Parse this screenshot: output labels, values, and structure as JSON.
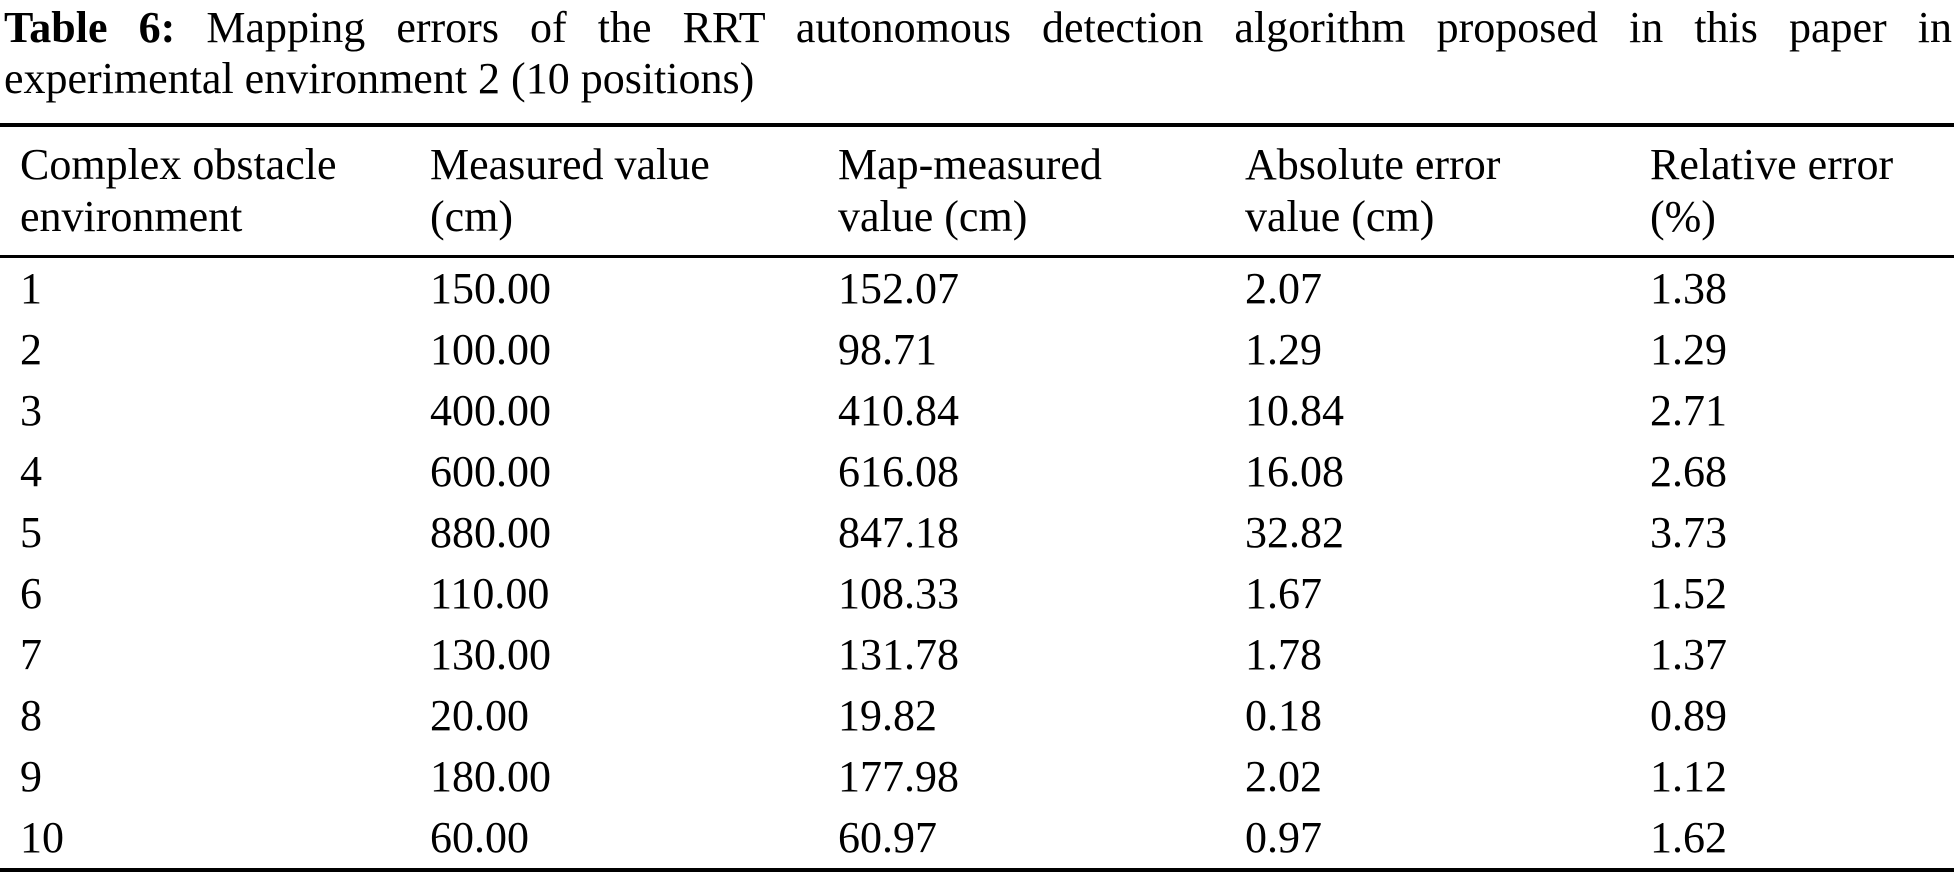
{
  "page": {
    "background": "#ffffff",
    "text_color": "#000000"
  },
  "caption": {
    "label": "Table 6:",
    "line1": "Mapping errors of the RRT autonomous detection algorithm proposed in this paper in",
    "line2": "experimental environment 2 (10 positions)"
  },
  "chart_data": {
    "type": "table",
    "title": "Table 6: Mapping errors of the RRT autonomous detection algorithm proposed in this paper in experimental environment 2 (10 positions)",
    "columns": [
      "Complex obstacle\nenvironment",
      "Measured value\n(cm)",
      "Map-measured\nvalue (cm)",
      "Absolute error\nvalue (cm)",
      "Relative error\n(%)"
    ],
    "rows": [
      [
        "1",
        "150.00",
        "152.07",
        "2.07",
        "1.38"
      ],
      [
        "2",
        "100.00",
        "98.71",
        "1.29",
        "1.29"
      ],
      [
        "3",
        "400.00",
        "410.84",
        "10.84",
        "2.71"
      ],
      [
        "4",
        "600.00",
        "616.08",
        "16.08",
        "2.68"
      ],
      [
        "5",
        "880.00",
        "847.18",
        "32.82",
        "3.73"
      ],
      [
        "6",
        "110.00",
        "108.33",
        "1.67",
        "1.52"
      ],
      [
        "7",
        "130.00",
        "131.78",
        "1.78",
        "1.37"
      ],
      [
        "8",
        "20.00",
        "19.82",
        "0.18",
        "0.89"
      ],
      [
        "9",
        "180.00",
        "177.98",
        "2.02",
        "1.12"
      ],
      [
        "10",
        "60.00",
        "60.97",
        "0.97",
        "1.62"
      ]
    ]
  }
}
